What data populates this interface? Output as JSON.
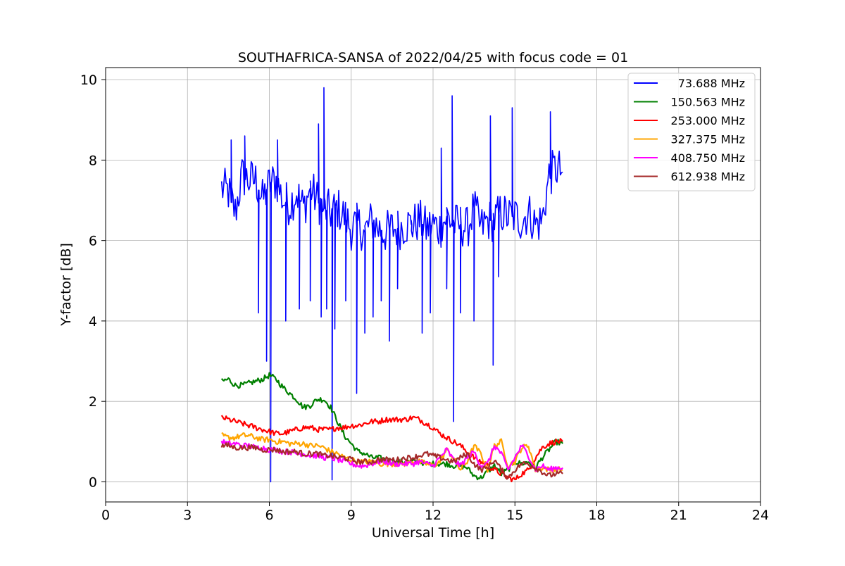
{
  "chart_data": {
    "type": "line",
    "title": "SOUTHAFRICA-SANSA of 2022/04/25 with focus code = 01",
    "xlabel": "Universal Time [h]",
    "ylabel": "Y-factor [dB]",
    "xlim": [
      0,
      24
    ],
    "ylim": [
      -0.5,
      10.3
    ],
    "xticks": [
      0,
      3,
      6,
      9,
      12,
      15,
      18,
      21,
      24
    ],
    "yticks": [
      0,
      2,
      4,
      6,
      8,
      10
    ],
    "grid": true,
    "legend_position": "top-right",
    "series": [
      {
        "name": "73.688 MHz",
        "color": "#0000ff",
        "x": [
          4.25,
          4.5,
          4.75,
          5.0,
          5.25,
          5.5,
          5.75,
          6.0,
          6.25,
          6.5,
          6.75,
          7.0,
          7.25,
          7.5,
          7.75,
          8.0,
          8.25,
          8.5,
          8.75,
          9.0,
          9.25,
          9.5,
          9.75,
          10.0,
          10.25,
          10.5,
          10.75,
          11.0,
          11.25,
          11.5,
          11.75,
          12.0,
          12.25,
          12.5,
          12.75,
          13.0,
          13.25,
          13.5,
          13.75,
          14.0,
          14.25,
          14.5,
          14.75,
          15.0,
          15.25,
          15.5,
          15.75,
          16.0,
          16.25,
          16.5,
          16.75
        ],
        "y": [
          7.3,
          7.2,
          6.7,
          7.6,
          7.5,
          7.5,
          7.0,
          7.4,
          7.5,
          7.0,
          6.9,
          7.2,
          6.8,
          7.3,
          7.0,
          6.8,
          6.7,
          6.8,
          6.6,
          6.3,
          6.4,
          6.2,
          6.5,
          6.3,
          6.2,
          6.3,
          6.3,
          6.4,
          6.4,
          6.5,
          6.3,
          6.4,
          6.3,
          6.6,
          6.4,
          6.4,
          6.3,
          6.8,
          6.3,
          6.5,
          6.5,
          6.7,
          6.6,
          6.6,
          6.5,
          6.7,
          6.4,
          6.5,
          7.6,
          7.8,
          7.7
        ],
        "spikes": [
          [
            4.6,
            8.5
          ],
          [
            5.1,
            8.6
          ],
          [
            5.6,
            4.2
          ],
          [
            5.9,
            3.0
          ],
          [
            6.05,
            0.0
          ],
          [
            6.3,
            8.5
          ],
          [
            6.6,
            4.0
          ],
          [
            7.1,
            4.3
          ],
          [
            7.5,
            4.5
          ],
          [
            7.8,
            8.9
          ],
          [
            7.9,
            4.1
          ],
          [
            8.0,
            9.8
          ],
          [
            8.1,
            4.3
          ],
          [
            8.3,
            0.05
          ],
          [
            8.4,
            3.8
          ],
          [
            8.8,
            4.5
          ],
          [
            9.2,
            2.2
          ],
          [
            9.5,
            3.7
          ],
          [
            9.8,
            4.1
          ],
          [
            10.1,
            4.5
          ],
          [
            10.4,
            3.5
          ],
          [
            10.7,
            4.8
          ],
          [
            11.2,
            6.5
          ],
          [
            11.6,
            3.7
          ],
          [
            11.9,
            4.2
          ],
          [
            12.3,
            8.3
          ],
          [
            12.5,
            4.8
          ],
          [
            12.7,
            9.6
          ],
          [
            12.75,
            1.5
          ],
          [
            13.0,
            4.2
          ],
          [
            13.5,
            4.0
          ],
          [
            14.1,
            9.1
          ],
          [
            14.2,
            2.9
          ],
          [
            14.4,
            5.1
          ],
          [
            14.9,
            9.3
          ],
          [
            16.3,
            9.2
          ]
        ]
      },
      {
        "name": "150.563 MHz",
        "color": "#008000",
        "x": [
          4.25,
          4.5,
          4.75,
          5.0,
          5.25,
          5.5,
          5.75,
          6.0,
          6.25,
          6.5,
          6.75,
          7.0,
          7.25,
          7.5,
          7.75,
          8.0,
          8.25,
          8.5,
          8.75,
          9.0,
          9.25,
          9.5,
          9.75,
          10.0,
          10.25,
          10.5,
          10.75,
          11.0,
          11.25,
          11.5,
          11.75,
          12.0,
          12.25,
          12.5,
          12.75,
          13.0,
          13.25,
          13.5,
          13.75,
          14.0,
          14.25,
          14.5,
          14.75,
          15.0,
          15.25,
          15.5,
          15.75,
          16.0,
          16.25,
          16.5,
          16.75
        ],
        "y": [
          2.5,
          2.55,
          2.4,
          2.4,
          2.45,
          2.5,
          2.55,
          2.65,
          2.55,
          2.35,
          2.2,
          2.05,
          1.85,
          1.9,
          2.05,
          2.05,
          1.85,
          1.5,
          1.15,
          0.95,
          0.75,
          0.7,
          0.6,
          0.6,
          0.55,
          0.5,
          0.5,
          0.5,
          0.5,
          0.5,
          0.45,
          0.45,
          0.45,
          0.45,
          0.4,
          0.4,
          0.35,
          0.15,
          0.1,
          0.25,
          0.4,
          0.2,
          0.3,
          0.5,
          0.45,
          0.5,
          0.35,
          0.6,
          0.8,
          1.0,
          0.95
        ]
      },
      {
        "name": "253.000 MHz",
        "color": "#ff0000",
        "x": [
          4.25,
          4.5,
          4.75,
          5.0,
          5.25,
          5.5,
          5.75,
          6.0,
          6.25,
          6.5,
          6.75,
          7.0,
          7.25,
          7.5,
          7.75,
          8.0,
          8.25,
          8.5,
          8.75,
          9.0,
          9.25,
          9.5,
          9.75,
          10.0,
          10.25,
          10.5,
          10.75,
          11.0,
          11.25,
          11.5,
          11.75,
          12.0,
          12.25,
          12.5,
          12.75,
          13.0,
          13.25,
          13.5,
          13.75,
          14.0,
          14.25,
          14.5,
          14.75,
          15.0,
          15.25,
          15.5,
          15.75,
          16.0,
          16.25,
          16.5,
          16.75
        ],
        "y": [
          1.6,
          1.55,
          1.5,
          1.45,
          1.4,
          1.35,
          1.3,
          1.25,
          1.2,
          1.2,
          1.25,
          1.3,
          1.35,
          1.35,
          1.3,
          1.3,
          1.3,
          1.35,
          1.35,
          1.4,
          1.4,
          1.45,
          1.5,
          1.5,
          1.55,
          1.55,
          1.55,
          1.55,
          1.6,
          1.55,
          1.45,
          1.35,
          1.2,
          1.1,
          1.0,
          0.9,
          0.75,
          0.6,
          0.5,
          0.4,
          0.3,
          0.2,
          0.1,
          0.05,
          0.2,
          0.3,
          0.6,
          0.85,
          0.95,
          1.0,
          1.0
        ]
      },
      {
        "name": "327.375 MHz",
        "color": "#ffa500",
        "x": [
          4.25,
          4.5,
          4.75,
          5.0,
          5.25,
          5.5,
          5.75,
          6.0,
          6.25,
          6.5,
          6.75,
          7.0,
          7.25,
          7.5,
          7.75,
          8.0,
          8.25,
          8.5,
          8.75,
          9.0,
          9.25,
          9.5,
          9.75,
          10.0,
          10.25,
          10.5,
          10.75,
          11.0,
          11.25,
          11.5,
          11.75,
          12.0,
          12.25,
          12.5,
          12.75,
          13.0,
          13.25,
          13.5,
          13.75,
          14.0,
          14.25,
          14.5,
          14.75,
          15.0,
          15.25,
          15.5,
          15.75,
          16.0,
          16.25,
          16.5,
          16.75
        ],
        "y": [
          1.15,
          1.1,
          1.1,
          1.15,
          1.15,
          1.1,
          1.05,
          1.05,
          1.0,
          1.0,
          0.95,
          0.95,
          0.95,
          0.9,
          0.9,
          0.85,
          0.75,
          0.7,
          0.6,
          0.55,
          0.5,
          0.5,
          0.5,
          0.45,
          0.45,
          0.45,
          0.45,
          0.45,
          0.5,
          0.5,
          0.45,
          0.4,
          0.5,
          0.8,
          0.6,
          0.3,
          0.5,
          0.9,
          0.7,
          0.3,
          0.9,
          1.0,
          0.4,
          0.5,
          0.85,
          0.9,
          0.3,
          0.35,
          0.3,
          0.3,
          0.3
        ]
      },
      {
        "name": "408.750 MHz",
        "color": "#ff00ff",
        "x": [
          4.25,
          4.5,
          4.75,
          5.0,
          5.25,
          5.5,
          5.75,
          6.0,
          6.25,
          6.5,
          6.75,
          7.0,
          7.25,
          7.5,
          7.75,
          8.0,
          8.25,
          8.5,
          8.75,
          9.0,
          9.25,
          9.5,
          9.75,
          10.0,
          10.25,
          10.5,
          10.75,
          11.0,
          11.25,
          11.5,
          11.75,
          12.0,
          12.25,
          12.5,
          12.75,
          13.0,
          13.25,
          13.5,
          13.75,
          14.0,
          14.25,
          14.5,
          14.75,
          15.0,
          15.25,
          15.5,
          15.75,
          16.0,
          16.25,
          16.5,
          16.75
        ],
        "y": [
          1.0,
          0.95,
          0.95,
          0.9,
          0.9,
          0.85,
          0.85,
          0.8,
          0.8,
          0.75,
          0.75,
          0.7,
          0.7,
          0.65,
          0.65,
          0.6,
          0.6,
          0.55,
          0.5,
          0.45,
          0.4,
          0.4,
          0.45,
          0.5,
          0.5,
          0.45,
          0.45,
          0.45,
          0.45,
          0.5,
          0.45,
          0.4,
          0.6,
          0.8,
          0.55,
          0.4,
          0.6,
          0.75,
          0.4,
          0.45,
          0.9,
          0.7,
          0.3,
          0.6,
          0.9,
          0.65,
          0.3,
          0.4,
          0.3,
          0.35,
          0.35
        ]
      },
      {
        "name": "612.938 MHz",
        "color": "#a52a2a",
        "x": [
          4.25,
          4.5,
          4.75,
          5.0,
          5.25,
          5.5,
          5.75,
          6.0,
          6.25,
          6.5,
          6.75,
          7.0,
          7.25,
          7.5,
          7.75,
          8.0,
          8.25,
          8.5,
          8.75,
          9.0,
          9.25,
          9.5,
          9.75,
          10.0,
          10.25,
          10.5,
          10.75,
          11.0,
          11.25,
          11.5,
          11.75,
          12.0,
          12.25,
          12.5,
          12.75,
          13.0,
          13.25,
          13.5,
          13.75,
          14.0,
          14.25,
          14.5,
          14.75,
          15.0,
          15.25,
          15.5,
          15.75,
          16.0,
          16.25,
          16.5,
          16.75
        ],
        "y": [
          0.9,
          0.9,
          0.85,
          0.85,
          0.85,
          0.85,
          0.8,
          0.8,
          0.8,
          0.75,
          0.75,
          0.75,
          0.7,
          0.7,
          0.7,
          0.65,
          0.65,
          0.6,
          0.6,
          0.55,
          0.5,
          0.5,
          0.5,
          0.55,
          0.55,
          0.55,
          0.55,
          0.6,
          0.6,
          0.65,
          0.7,
          0.65,
          0.6,
          0.55,
          0.5,
          0.6,
          0.7,
          0.45,
          0.3,
          0.35,
          0.55,
          0.3,
          0.1,
          0.3,
          0.45,
          0.45,
          0.35,
          0.25,
          0.15,
          0.2,
          0.2
        ]
      }
    ]
  }
}
